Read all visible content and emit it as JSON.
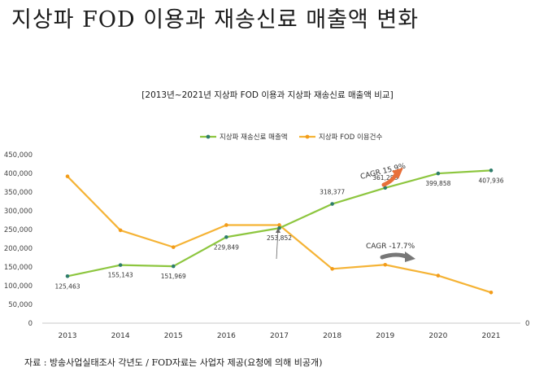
{
  "page": {
    "title": "지상파 FOD 이용과 재송신료 매출액 변화",
    "source": "자료 : 방송사업실태조사 각년도 / FOD자료는 사업자 제공(요청에 의해 비공개)"
  },
  "chart_data": {
    "type": "line",
    "title": "[2013년~2021년 지상파 FOD 이용과 지상파 재송신료 매출액 비교]",
    "x": [
      "2013",
      "2014",
      "2015",
      "2016",
      "2017",
      "2018",
      "2019",
      "2020",
      "2021"
    ],
    "ylim": [
      0,
      450000
    ],
    "yticks": [
      "0",
      "50,000",
      "100,000",
      "150,000",
      "200,000",
      "250,000",
      "300,000",
      "350,000",
      "400,000",
      "450,000"
    ],
    "y2_tick": "0",
    "legend_position": "top-center",
    "grid": false,
    "series": [
      {
        "name": "지상파 재송신료 매출액",
        "color": "#8dc63f",
        "marker_color": "#2e7d6b",
        "values": [
          125463,
          155143,
          151969,
          229849,
          253852,
          318377,
          361288,
          399858,
          407936
        ],
        "labels": [
          "125,463",
          "155,143",
          "151,969",
          "229,849",
          "253,852",
          "318,377",
          "361,288",
          "399,858",
          "407,936"
        ]
      },
      {
        "name": "지상파 FOD 이용건수",
        "color": "#f5b335",
        "marker_color": "#f39c1a",
        "values": [
          392000,
          248000,
          203000,
          262000,
          262000,
          145000,
          156000,
          127000,
          82000
        ]
      }
    ],
    "annotations": [
      {
        "text": "CAGR 15.9%",
        "color": "#e8703a"
      },
      {
        "text": "CAGR -17.7%",
        "color": "#777777"
      }
    ]
  }
}
